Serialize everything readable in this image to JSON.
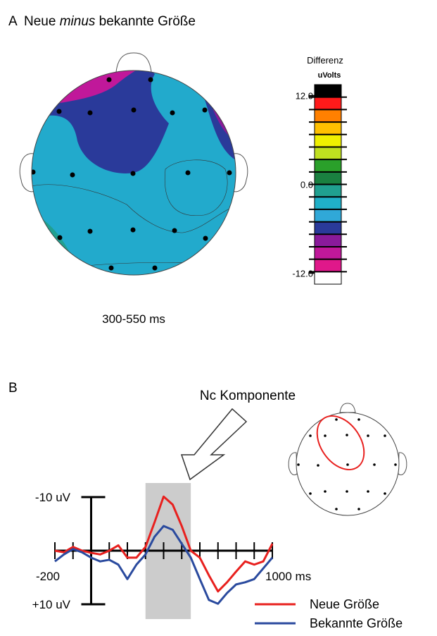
{
  "panel_a": {
    "label": "A",
    "title_parts": [
      "Neue ",
      "minus",
      " bekannte Größe"
    ],
    "caption": "300-550 ms",
    "colorbar": {
      "title": "Differenz",
      "unit": "uVolts",
      "lim": [
        -13.5,
        13.5
      ],
      "ticks": [
        {
          "value": 12,
          "label": "12.0"
        },
        {
          "value": 0,
          "label": "0.0"
        },
        {
          "value": -12,
          "label": "-12.0"
        }
      ],
      "colors": [
        "#000000",
        "#ff1a1a",
        "#ff8000",
        "#ffc000",
        "#f0f000",
        "#c0e020",
        "#2aa02a",
        "#1a8040",
        "#20a090",
        "#20b0c8",
        "#30a8d8",
        "#2a3a9a",
        "#8a1a9a",
        "#c0189a",
        "#e0188a",
        "#ffffff"
      ]
    }
  },
  "panel_b": {
    "label": "B",
    "annotation": "Nc Komponente"
  },
  "chart_data": {
    "type": "line",
    "x": [
      -200,
      -150,
      -100,
      -50,
      0,
      50,
      100,
      150,
      200,
      250,
      300,
      350,
      400,
      450,
      500,
      550,
      600,
      650,
      700,
      750,
      800,
      850,
      900,
      950,
      1000
    ],
    "series": [
      {
        "name": "Neue Größe",
        "color": "#e8201e",
        "values": [
          0,
          0.3,
          -0.7,
          0,
          0.4,
          0.7,
          0,
          -1,
          1.3,
          1.3,
          -0.7,
          -5.3,
          -10.1,
          -8.6,
          -4.6,
          0,
          1.3,
          4.6,
          7.6,
          5.9,
          3.9,
          2,
          2.6,
          2,
          -1.3
        ]
      },
      {
        "name": "Bekannte Größe",
        "color": "#2a4a9e",
        "values": [
          2,
          0.7,
          -0.3,
          0.3,
          1.3,
          2,
          1.7,
          2.6,
          5.3,
          2.6,
          0.7,
          -2.6,
          -4.6,
          -3.9,
          -1.3,
          1.3,
          5.3,
          9.2,
          9.9,
          7.9,
          6.3,
          5.9,
          5.3,
          3.3,
          1.3
        ]
      }
    ],
    "xlim": [
      -200,
      1000
    ],
    "ylim": [
      10,
      -10
    ],
    "xticks": [
      -200,
      {
        "value": 1000,
        "label": "1000 ms"
      }
    ],
    "minor_xticks": [
      -100,
      0,
      100,
      200,
      300,
      400,
      500,
      600,
      700,
      800,
      900
    ],
    "yticks": [
      {
        "value": -10,
        "label": "-10 uV"
      },
      {
        "value": 10,
        "label": "+10 uV"
      }
    ],
    "shade": [
      300,
      550
    ]
  }
}
